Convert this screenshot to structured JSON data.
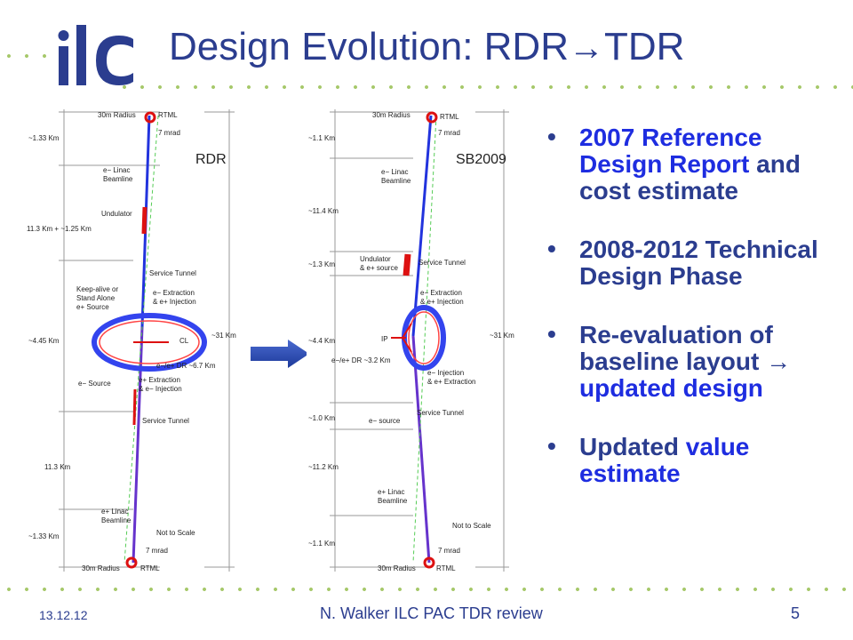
{
  "slide": {
    "title_prefix": "Design Evolution: RDR",
    "title_arrow": "→",
    "title_suffix": "TDR",
    "logo_text": "ilc"
  },
  "diagram_rdr": {
    "tag": "RDR",
    "labels": {
      "radius_top": "30m Radius",
      "rtml_top": "RTML",
      "mrad_top": "7 mrad",
      "dist_1": "~1.33 Km",
      "linac_e": "e− Linac",
      "beamline": "Beamline",
      "undulator": "Undulator",
      "dist_2": "11.3 Km + ~1.25 Km",
      "service_tunnel_1": "Service Tunnel",
      "keep_alive_1": "Keep-alive or",
      "keep_alive_2": "Stand Alone",
      "keep_alive_3": "e+ Source",
      "extraction_1": "e− Extraction",
      "extraction_2": "& e+ Injection",
      "dist_3": "~4.45 Km",
      "cl": "CL",
      "dist_total": "~31 Km",
      "dr": "e−/e+ DR ~6.7 Km",
      "e_source": "e− Source",
      "extraction_3": "e+ Extraction",
      "extraction_4": "& e− Injection",
      "service_tunnel_2": "Service Tunnel",
      "dist_4": "11.3 Km",
      "linac_p": "e+ Linac",
      "beamline_2": "Beamline",
      "not_to_scale": "Not to Scale",
      "dist_5": "~1.33 Km",
      "mrad_bottom": "7 mrad",
      "radius_bottom": "30m Radius",
      "rtml_bottom": "RTML"
    }
  },
  "diagram_sb": {
    "tag": "SB2009",
    "labels": {
      "radius_top": "30m Radius",
      "rtml_top": "RTML",
      "mrad_top": "7 mrad",
      "dist_1": "~1.1 Km",
      "linac_e": "e− Linac",
      "beamline": "Beamline",
      "dist_2": "~11.4 Km",
      "undulator": "Undulator",
      "source": "& e+ source",
      "service_tunnel_1": "Service Tunnel",
      "dist_3": "~1.3 Km",
      "extraction_1": "e− Extraction",
      "extraction_2": "& e+ Injection",
      "ip": "IP",
      "dist_4": "~4.4 Km",
      "dist_total": "~31 Km",
      "dr": "e−/e+ DR ~3.2 Km",
      "injection_1": "e− Injection",
      "injection_2": "& e+ Extraction",
      "dist_5": "~1.0 Km",
      "e_source": "e− source",
      "service_tunnel_2": "Service Tunnel",
      "dist_6": "~11.2 Km",
      "linac_p": "e+ Linac",
      "beamline_2": "Beamline",
      "not_to_scale": "Not to Scale",
      "dist_7": "~1.1 Km",
      "mrad_bottom": "7 mrad",
      "radius_bottom": "30m Radius",
      "rtml_bottom": "RTML"
    }
  },
  "bullets": [
    {
      "a": "2007 Reference Design Report",
      "b": " and cost estimate"
    },
    {
      "a": "2008-2012 Technical Design Phase",
      "b": ""
    },
    {
      "a": "Re-evaluation of baseline layout ",
      "arrow": "→",
      "b": "updated design"
    },
    {
      "a": "Updated ",
      "b": "value estimate"
    }
  ],
  "footer": {
    "date": "13.12.12",
    "center": "N. Walker ILC PAC TDR review",
    "page": "5"
  },
  "colors": {
    "title": "#2b3d8f",
    "accent_blue": "#1e2de0",
    "dots": "#a6c86a"
  }
}
